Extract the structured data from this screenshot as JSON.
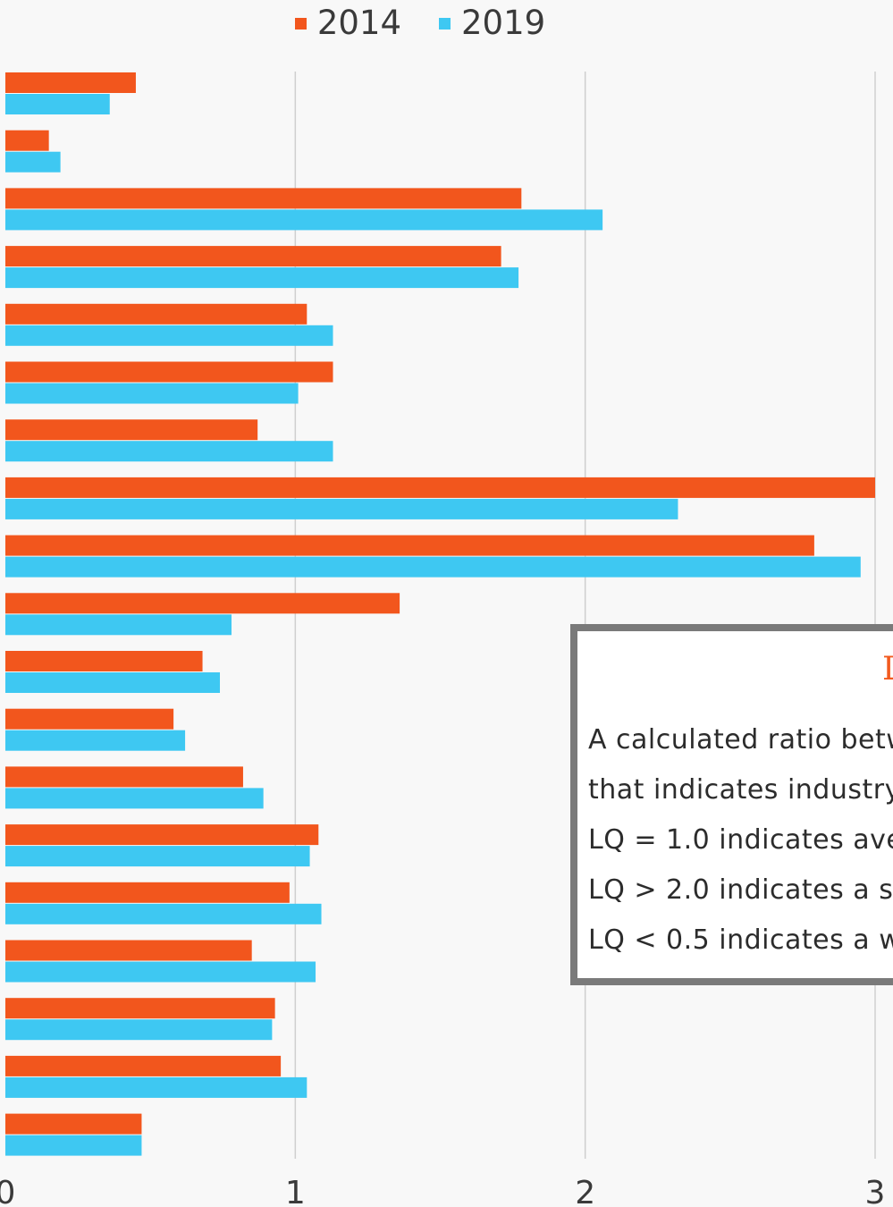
{
  "legend": [
    {
      "label": "2014",
      "color": "#f2561d"
    },
    {
      "label": "2019",
      "color": "#3ec8f2"
    }
  ],
  "info": {
    "title": "L",
    "lines": [
      "A calculated ratio betw",
      "that indicates industry",
      "LQ = 1.0 indicates ave",
      "LQ > 2.0 indicates a st",
      "LQ < 0.5 indicates a w"
    ]
  },
  "chart_data": {
    "type": "bar",
    "orientation": "horizontal",
    "x_ticks": [
      "0",
      "1",
      "2",
      "3"
    ],
    "xlim": [
      0,
      3
    ],
    "grid": true,
    "legend_position": "top",
    "series": [
      {
        "name": "2014",
        "color": "#f2561d",
        "values": [
          0.45,
          0.15,
          1.78,
          1.71,
          1.04,
          1.13,
          0.87,
          3.0,
          2.79,
          1.36,
          0.68,
          0.58,
          0.82,
          1.08,
          0.98,
          0.85,
          0.93,
          0.95,
          0.47
        ]
      },
      {
        "name": "2019",
        "color": "#3ec8f2",
        "values": [
          0.36,
          0.19,
          2.06,
          1.77,
          1.13,
          1.01,
          1.13,
          2.32,
          2.95,
          0.78,
          0.74,
          0.62,
          0.89,
          1.05,
          1.09,
          1.07,
          0.92,
          1.04,
          0.47
        ]
      }
    ]
  }
}
